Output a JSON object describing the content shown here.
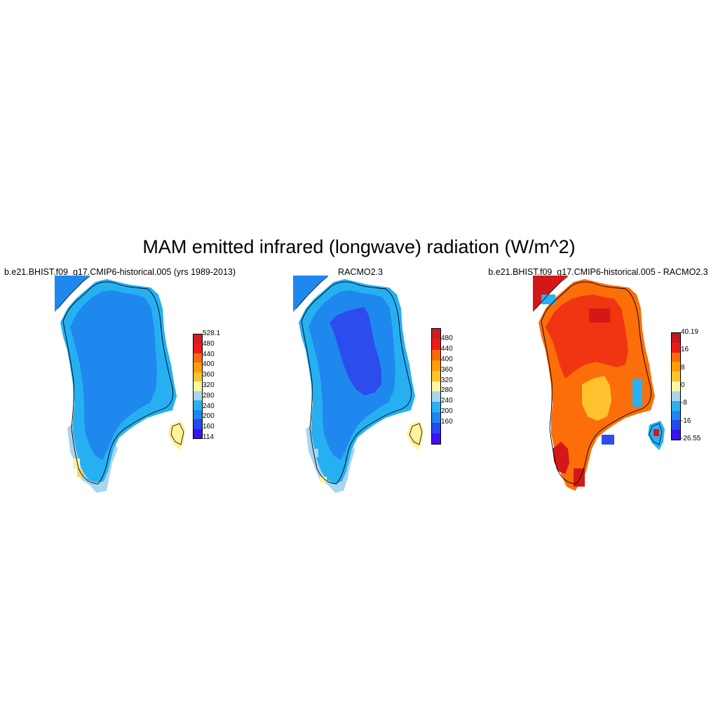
{
  "title": "MAM emitted infrared (longwave) radiation (W/m^2)",
  "panels": [
    {
      "title": "b.e21.BHIST.f09_g17.CMIP6-historical.005 (yrs 1989-2013)",
      "colorbar": {
        "labels": [
          "528.1",
          "480",
          "440",
          "400",
          "360",
          "320",
          "280",
          "240",
          "200",
          "160",
          "114"
        ],
        "colors": [
          "#d11f1f",
          "#ee1a1a",
          "#fb6a0a",
          "#fe9d05",
          "#fec22e",
          "#fef79e",
          "#a7d6ee",
          "#29b1f3",
          "#1d86ef",
          "#2648f0",
          "#3b12f0"
        ]
      },
      "region_colors": {
        "interior": "#1e88ef",
        "margin": "#26b0f2",
        "coast": "#a8d6ef",
        "warm": "#fff29a",
        "warmer": "#fcd25b"
      }
    },
    {
      "title": "RACMO2.3",
      "colorbar": {
        "labels": [
          "480",
          "440",
          "400",
          "360",
          "320",
          "280",
          "240",
          "200",
          "160"
        ],
        "colors": [
          "#c81f24",
          "#ee1a1a",
          "#fb6a0a",
          "#fe9d05",
          "#fec22e",
          "#fef79e",
          "#a7d6ee",
          "#29b1f3",
          "#1d86ef",
          "#2648f0",
          "#3b12f0"
        ]
      },
      "region_colors": {
        "core": "#2d4ced",
        "interior": "#1e88ef",
        "margin": "#26b0f2",
        "coast": "#a8d6ef",
        "warm": "#fff29a"
      }
    },
    {
      "title": "b.e21.BHIST.f09_g17.CMIP6-historical.005 - RACMO2.3",
      "colorbar": {
        "labels": [
          "40.19",
          "16",
          "8",
          "0",
          "-8",
          "-16",
          "-26.55"
        ],
        "colors": [
          "#c7171f",
          "#ee1a1a",
          "#fb6a0a",
          "#fe9d05",
          "#fec22e",
          "#fef79e",
          "#a7d6ee",
          "#29b1f3",
          "#1d86ef",
          "#2648f0",
          "#3b12f0"
        ]
      },
      "region_colors": {
        "core": "#f03512",
        "interior": "#fb6e0a",
        "center": "#fec22e",
        "hot": "#d41818",
        "cold": "#2d4ced",
        "cool": "#29b1f3"
      }
    }
  ]
}
